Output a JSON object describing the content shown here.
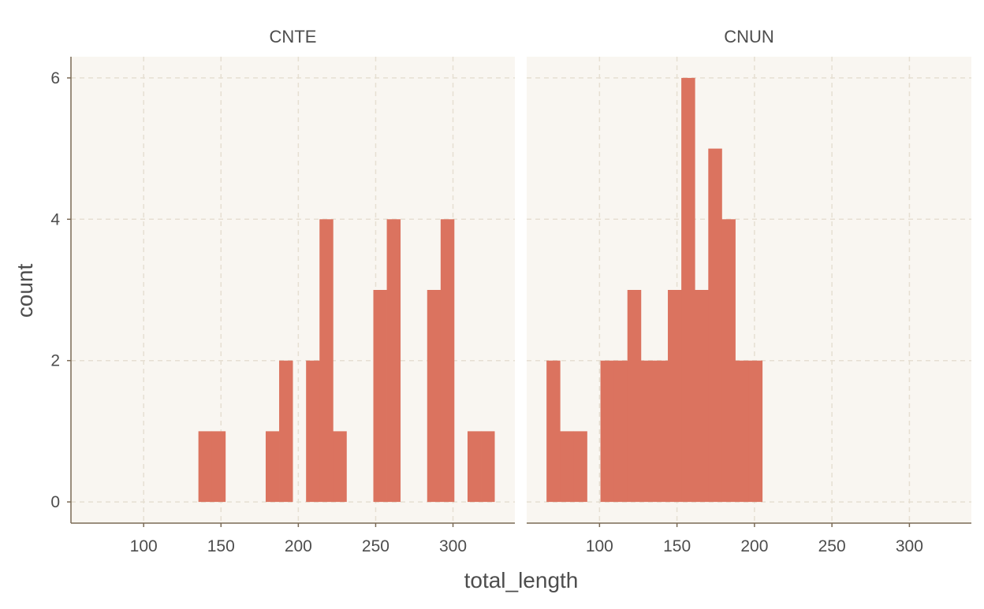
{
  "chart_data": {
    "type": "histogram",
    "xlabel": "total_length",
    "ylabel": "count",
    "x_ticks": [
      100,
      150,
      200,
      250,
      300
    ],
    "y_ticks": [
      0,
      2,
      4,
      6
    ],
    "xlim": [
      53,
      340
    ],
    "ylim": [
      -0.3,
      6.3
    ],
    "bin_width": 8.7,
    "grid": true,
    "colors": {
      "bar": "#db735f",
      "panel_bg": "#f9f6f1",
      "grid": "#e6dfd2",
      "axis_line": "#7a6a55",
      "text": "#4d4d4d"
    },
    "facets": [
      {
        "label": "CNTE",
        "bins": [
          {
            "x0": 135.4,
            "x1": 144.1,
            "count": 1
          },
          {
            "x0": 144.1,
            "x1": 152.8,
            "count": 1
          },
          {
            "x0": 178.9,
            "x1": 187.6,
            "count": 1
          },
          {
            "x0": 187.6,
            "x1": 196.3,
            "count": 2
          },
          {
            "x0": 205.0,
            "x1": 213.7,
            "count": 2
          },
          {
            "x0": 213.7,
            "x1": 222.4,
            "count": 4
          },
          {
            "x0": 222.4,
            "x1": 231.1,
            "count": 1
          },
          {
            "x0": 248.5,
            "x1": 257.2,
            "count": 3
          },
          {
            "x0": 257.2,
            "x1": 265.9,
            "count": 4
          },
          {
            "x0": 283.3,
            "x1": 292.0,
            "count": 3
          },
          {
            "x0": 292.0,
            "x1": 300.7,
            "count": 4
          },
          {
            "x0": 309.4,
            "x1": 318.1,
            "count": 1
          },
          {
            "x0": 318.1,
            "x1": 326.8,
            "count": 1
          }
        ]
      },
      {
        "label": "CNUN",
        "bins": [
          {
            "x0": 65.8,
            "x1": 74.5,
            "count": 2
          },
          {
            "x0": 74.5,
            "x1": 83.2,
            "count": 1
          },
          {
            "x0": 83.2,
            "x1": 91.9,
            "count": 1
          },
          {
            "x0": 100.6,
            "x1": 109.3,
            "count": 2
          },
          {
            "x0": 109.3,
            "x1": 118.0,
            "count": 2
          },
          {
            "x0": 118.0,
            "x1": 126.7,
            "count": 3
          },
          {
            "x0": 126.7,
            "x1": 135.4,
            "count": 2
          },
          {
            "x0": 135.4,
            "x1": 144.1,
            "count": 2
          },
          {
            "x0": 144.1,
            "x1": 152.8,
            "count": 3
          },
          {
            "x0": 152.8,
            "x1": 161.5,
            "count": 6
          },
          {
            "x0": 161.5,
            "x1": 170.2,
            "count": 3
          },
          {
            "x0": 170.2,
            "x1": 178.9,
            "count": 5
          },
          {
            "x0": 178.9,
            "x1": 187.6,
            "count": 4
          },
          {
            "x0": 187.6,
            "x1": 196.3,
            "count": 2
          },
          {
            "x0": 196.3,
            "x1": 205.0,
            "count": 2
          }
        ]
      }
    ]
  }
}
